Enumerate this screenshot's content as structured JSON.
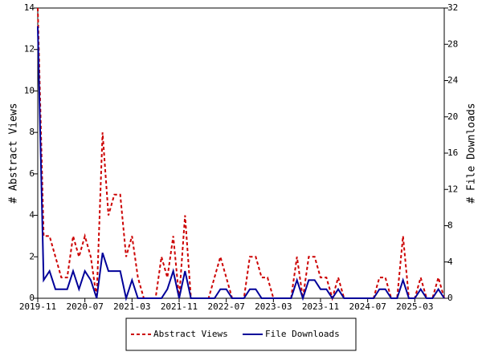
{
  "chart_data": {
    "type": "line",
    "ylabel": "# Abstract Views",
    "y2label": "# File Downloads",
    "categories": [
      "2019-11",
      null,
      null,
      null,
      null,
      null,
      null,
      null,
      "2020-07",
      null,
      null,
      null,
      null,
      null,
      null,
      null,
      "2021-03",
      null,
      null,
      null,
      null,
      null,
      null,
      null,
      "2021-11",
      null,
      null,
      null,
      null,
      null,
      null,
      null,
      "2022-07",
      null,
      null,
      null,
      null,
      null,
      null,
      null,
      "2023-03",
      null,
      null,
      null,
      null,
      null,
      null,
      null,
      "2023-11",
      null,
      null,
      null,
      null,
      null,
      null,
      null,
      "2024-07",
      null,
      null,
      null,
      null,
      null,
      null,
      null,
      "2025-03",
      null,
      null,
      null,
      null,
      null
    ],
    "series": [
      {
        "name": "Abstract Views",
        "color": "#cc0000",
        "style": "dashed",
        "axis": "y",
        "values": [
          14,
          3,
          3,
          2,
          1,
          1,
          3,
          2,
          3,
          2,
          0,
          8,
          4,
          5,
          5,
          2,
          3,
          1,
          0,
          0,
          0,
          2,
          1,
          3,
          0,
          4,
          0,
          0,
          0,
          0,
          1,
          2,
          1,
          0,
          0,
          0,
          2,
          2,
          1,
          1,
          0,
          0,
          0,
          0,
          2,
          0,
          2,
          2,
          1,
          1,
          0,
          1,
          0,
          0,
          0,
          0,
          0,
          0,
          1,
          1,
          0,
          0,
          3,
          0,
          0,
          1,
          0,
          0,
          1,
          0
        ]
      },
      {
        "name": "File Downloads",
        "color": "#000099",
        "style": "solid",
        "axis": "y2",
        "values": [
          30,
          2,
          3,
          1,
          1,
          1,
          3,
          1,
          3,
          2,
          0,
          5,
          3,
          3,
          3,
          0,
          2,
          0,
          0,
          0,
          0,
          0,
          1,
          3,
          0,
          3,
          0,
          0,
          0,
          0,
          0,
          1,
          1,
          0,
          0,
          0,
          1,
          1,
          0,
          0,
          0,
          0,
          0,
          0,
          2,
          0,
          2,
          2,
          1,
          1,
          0,
          1,
          0,
          0,
          0,
          0,
          0,
          0,
          1,
          1,
          0,
          0,
          2,
          0,
          0,
          1,
          0,
          0,
          1,
          0
        ]
      }
    ],
    "ylim": [
      0,
      14
    ],
    "yticks": [
      0,
      2,
      4,
      6,
      8,
      10,
      12,
      14
    ],
    "y2lim": [
      0,
      32
    ],
    "y2ticks": [
      0,
      4,
      8,
      12,
      16,
      20,
      24,
      28,
      32
    ],
    "legend": "bottom"
  }
}
